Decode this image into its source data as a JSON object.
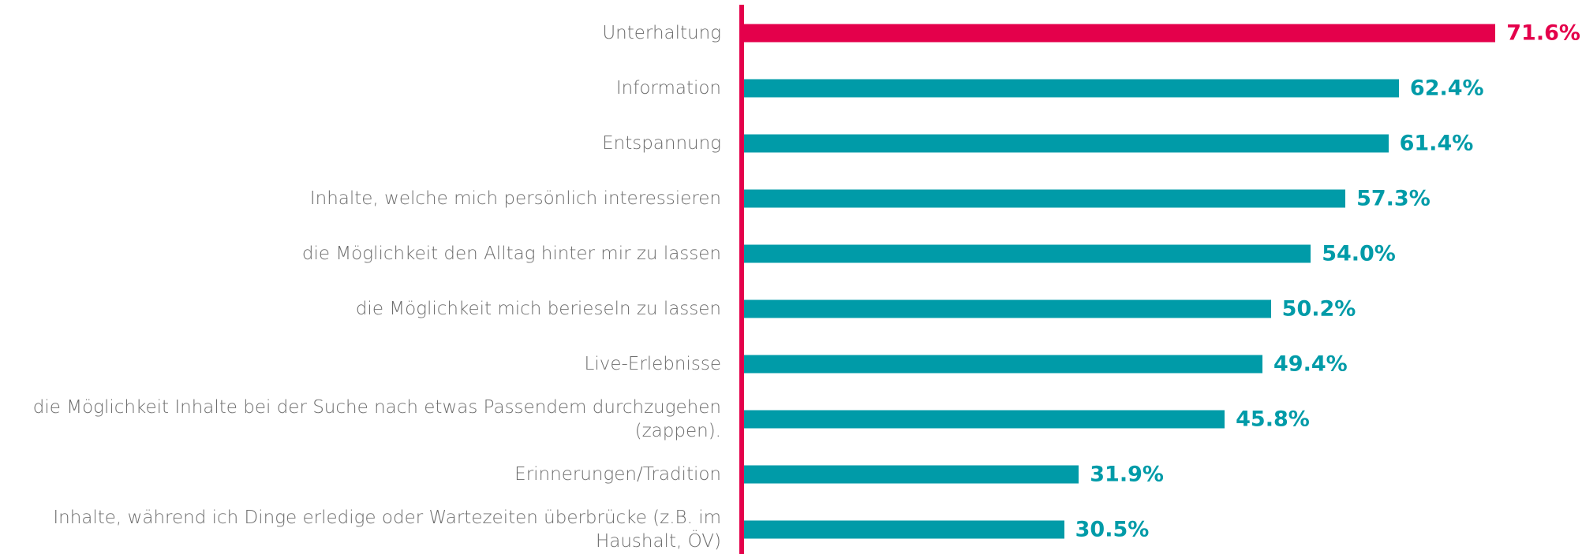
{
  "chart_data": {
    "type": "barh",
    "categories": [
      "Unterhaltung",
      "Information",
      "Entspannung",
      "Inhalte, welche mich persönlich interessieren",
      "die Möglichkeit den Alltag hinter mir zu lassen",
      "die Möglichkeit mich berieseln zu lassen",
      "Live-Erlebnisse",
      "die Möglichkeit Inhalte bei der Suche nach etwas Passendem durchzugehen (zappen).",
      "Erinnerungen/Tradition",
      "Inhalte, während ich Dinge erledige oder Wartezeiten überbrücke (z.B. im Haushalt, ÖV)"
    ],
    "values": [
      71.6,
      62.4,
      61.4,
      57.3,
      54.0,
      50.2,
      49.4,
      45.8,
      31.9,
      30.5
    ],
    "value_labels": [
      "71.6%",
      "62.4%",
      "61.4%",
      "57.3%",
      "54.0%",
      "50.2%",
      "49.4%",
      "45.8%",
      "31.9%",
      "30.5%"
    ],
    "colors": [
      "#e4004b",
      "#009ba8",
      "#009ba8",
      "#009ba8",
      "#009ba8",
      "#009ba8",
      "#009ba8",
      "#009ba8",
      "#009ba8",
      "#009ba8"
    ],
    "xlim": [
      0,
      80
    ]
  }
}
